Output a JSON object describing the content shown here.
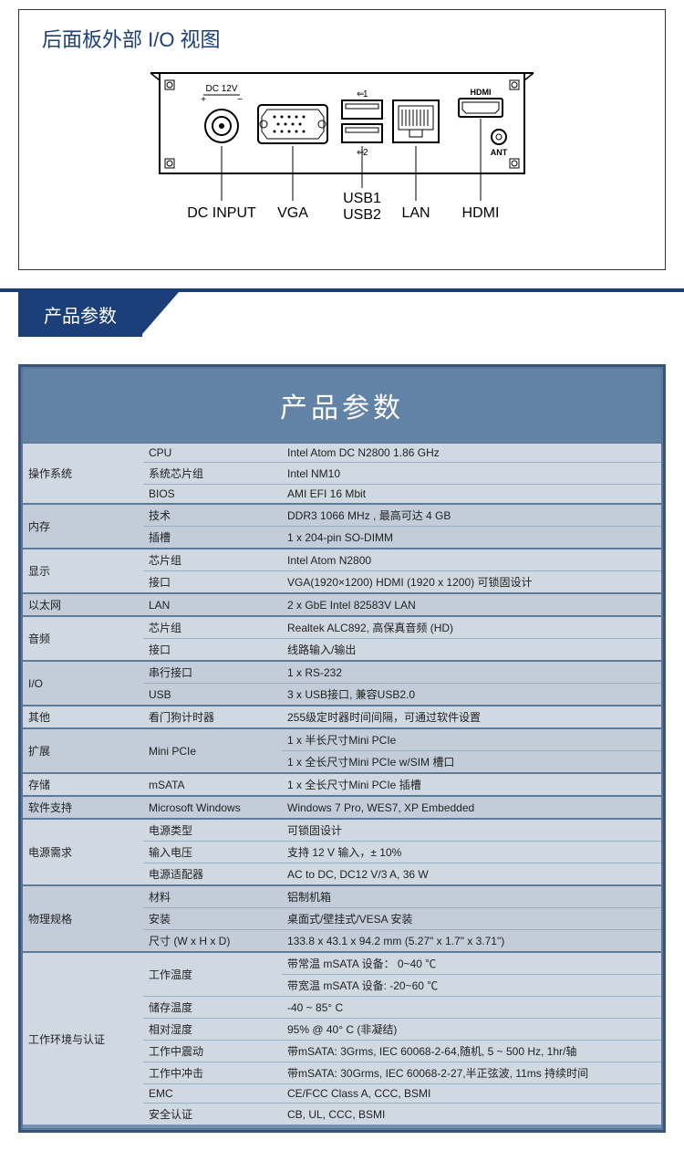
{
  "io": {
    "title": "后面板外部 I/O 视图",
    "board_labels": {
      "dc12v": "DC 12V",
      "usb1_top": "1",
      "usb2_top": "2",
      "hdmi_top": "HDMI",
      "ant": "ANT"
    },
    "callouts": {
      "dc": "DC INPUT",
      "vga": "VGA",
      "usb1": "USB1",
      "usb2": "USB2",
      "lan": "LAN",
      "hdmi": "HDMI"
    }
  },
  "section_tab": "产品参数",
  "spec_header": "产品参数",
  "rows": [
    {
      "cat": "操作系统",
      "catspan": 3,
      "sub": "CPU",
      "val": "Intel Atom DC N2800 1.86 GHz",
      "group": true
    },
    {
      "sub": "系统芯片组",
      "val": "Intel NM10"
    },
    {
      "sub": "BIOS",
      "val": "AMI EFI 16 Mbit"
    },
    {
      "cat": "内存",
      "catspan": 2,
      "sub": "技术",
      "val": "DDR3 1066 MHz , 最高可达 4 GB",
      "group": true
    },
    {
      "sub": "插槽",
      "val": "1 x 204-pin SO-DIMM"
    },
    {
      "cat": "显示",
      "catspan": 2,
      "sub": "芯片组",
      "val": "Intel Atom N2800",
      "group": true
    },
    {
      "sub": "接口",
      "val": "VGA(1920×1200)  HDMI (1920 x 1200) 可锁固设计"
    },
    {
      "cat": "以太网",
      "catspan": 1,
      "sub": "LAN",
      "val": "2 x GbE Intel 82583V LAN",
      "group": true
    },
    {
      "cat": "音频",
      "catspan": 2,
      "sub": "芯片组",
      "val": "Realtek ALC892, 高保真音频 (HD)",
      "group": true
    },
    {
      "sub": "接口",
      "val": "线路输入/输出"
    },
    {
      "cat": "I/O",
      "catspan": 2,
      "sub": "串行接口",
      "val": "1 x RS-232",
      "group": true
    },
    {
      "sub": "USB",
      "val": "3 x USB接口, 兼容USB2.0"
    },
    {
      "cat": "其他",
      "catspan": 1,
      "sub": "看门狗计时器",
      "val": "255级定时器时间间隔，可通过软件设置",
      "group": true
    },
    {
      "cat": "扩展",
      "catspan": 2,
      "sub": "Mini PCIe",
      "subspan": 2,
      "val": "1 x 半长尺寸Mini PCIe",
      "group": true
    },
    {
      "val": "1 x 全长尺寸Mini PCIe w/SIM 槽口"
    },
    {
      "cat": "存储",
      "catspan": 1,
      "sub": "mSATA",
      "val": "1 x 全长尺寸Mini PCIe   插槽",
      "group": true
    },
    {
      "cat": "软件支持",
      "catspan": 1,
      "sub": "Microsoft Windows",
      "val": "Windows 7 Pro, WES7, XP Embedded",
      "group": true
    },
    {
      "cat": "电源需求",
      "catspan": 3,
      "sub": "电源类型",
      "val": "可锁固设计",
      "group": true
    },
    {
      "sub": "输入电压",
      "val": "支持 12 V 输入，± 10%"
    },
    {
      "sub": "电源适配器",
      "val": "AC to DC, DC12 V/3 A, 36 W"
    },
    {
      "cat": "物理规格",
      "catspan": 3,
      "sub": "材料",
      "val": "铝制机箱",
      "group": true
    },
    {
      "sub": "安装",
      "val": "桌面式/壁挂式/VESA 安装"
    },
    {
      "sub": "尺寸 (W x H x D)",
      "val": "133.8 x 43.1 x 94.2 mm (5.27\" x 1.7\" x 3.71\")"
    },
    {
      "cat": "工作环境与认证",
      "catspan": 8,
      "sub": "工作温度",
      "subspan": 2,
      "val": "带常温 mSATA 设备：  0~40 ℃",
      "group": true
    },
    {
      "val": "带宽温 mSATA 设备: -20~60  ℃"
    },
    {
      "sub": "储存温度",
      "val": "-40 ~ 85° C"
    },
    {
      "sub": "相对湿度",
      "val": "95% @ 40° C (非凝结)"
    },
    {
      "sub": "工作中震动",
      "val": "带mSATA: 3Grms, IEC 60068-2-64,随机, 5 ~ 500 Hz, 1hr/轴"
    },
    {
      "sub": "工作中冲击",
      "val": "带mSATA: 30Grms, IEC 60068-2-27,半正弦波, 11ms 持续时间"
    },
    {
      "sub": "EMC",
      "val": "CE/FCC Class A, CCC, BSMI"
    },
    {
      "sub": "安全认证",
      "val": "CB, UL, CCC, BSMI"
    }
  ]
}
